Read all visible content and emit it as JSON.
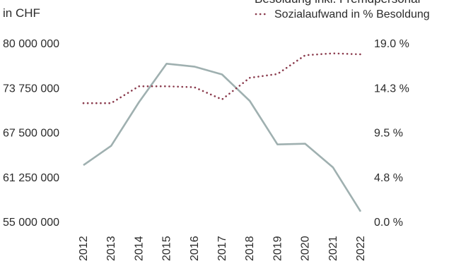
{
  "chart_data": {
    "type": "line",
    "title": "Besoldung inkl. Fremdpersonal",
    "left_axis_unit_label": "in CHF",
    "categories": [
      "2012",
      "2013",
      "2014",
      "2015",
      "2016",
      "2017",
      "2018",
      "2019",
      "2020",
      "2021",
      "2022"
    ],
    "y_left": {
      "ticks": [
        "80 000 000",
        "73 750 000",
        "67 500 000",
        "61 250 000",
        "55 000 000"
      ],
      "range": [
        55000000,
        80000000
      ]
    },
    "y_right": {
      "ticks": [
        "19.0 %",
        "14.3 %",
        "9.5 %",
        "4.8 %",
        "0.0 %"
      ],
      "range": [
        0,
        19
      ]
    },
    "series": [
      {
        "name": "Besoldung inkl. Fremdpersonal",
        "axis": "left",
        "style": "solid",
        "color": "#9fb0b0",
        "values": [
          62900000,
          65600000,
          71700000,
          77100000,
          76700000,
          75600000,
          71900000,
          65800000,
          65900000,
          62600000,
          56400000
        ]
      },
      {
        "name": "Sozialaufwand in % Besoldung",
        "axis": "right",
        "style": "dotted",
        "color": "#8a3a4c",
        "values": [
          12.6,
          12.6,
          14.4,
          14.4,
          14.3,
          13.0,
          15.3,
          15.7,
          17.7,
          17.9,
          17.8
        ]
      }
    ],
    "grid": false,
    "legend": "top-right"
  }
}
